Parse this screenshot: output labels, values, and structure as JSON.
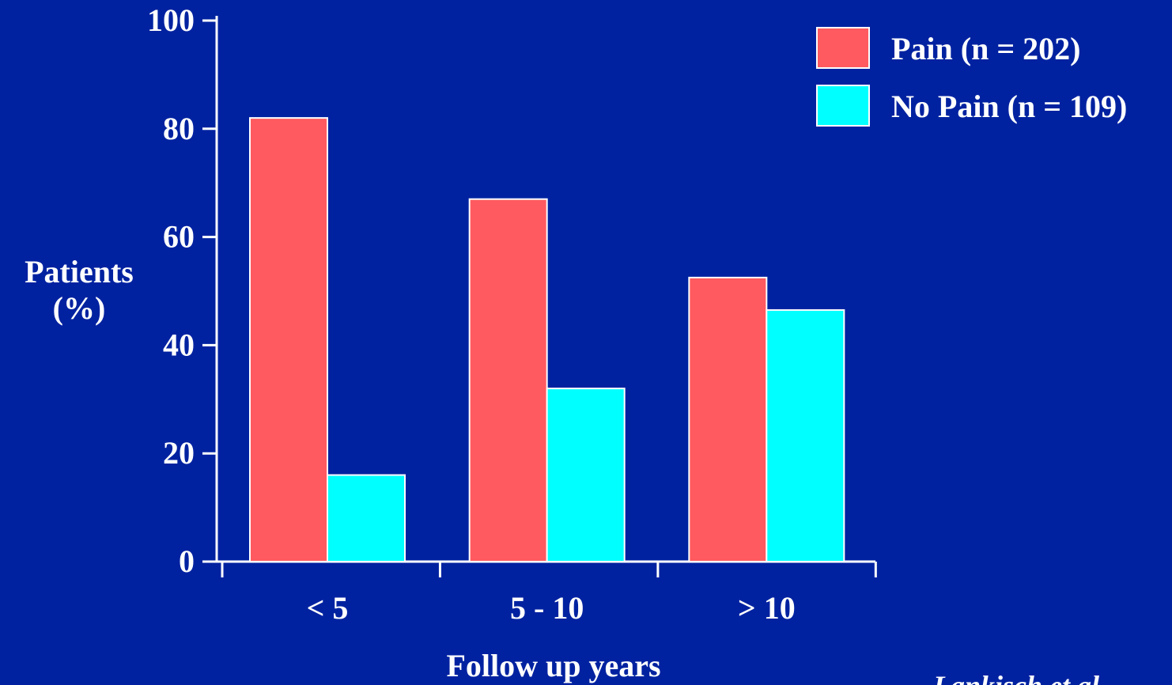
{
  "colors": {
    "background": "#0022A0",
    "axis": "#FFFFFF",
    "text": "#FFFFFF"
  },
  "chart_data": {
    "type": "bar",
    "ylabel": [
      "Patients",
      "(%)"
    ],
    "xlabel": "Follow up years",
    "ylim": [
      0,
      100
    ],
    "yticks": [
      0,
      20,
      40,
      60,
      80,
      100
    ],
    "categories": [
      "< 5",
      "5 - 10",
      "> 10"
    ],
    "series": [
      {
        "name": "Pain (n = 202)",
        "color": "#FF5A5F",
        "values": [
          82,
          67,
          52.5
        ]
      },
      {
        "name": "No Pain (n = 109)",
        "color": "#00FFFF",
        "values": [
          16,
          32,
          46.5
        ]
      }
    ],
    "legend_position": "top-right",
    "grid": false
  },
  "citation": "Lankisch et al."
}
